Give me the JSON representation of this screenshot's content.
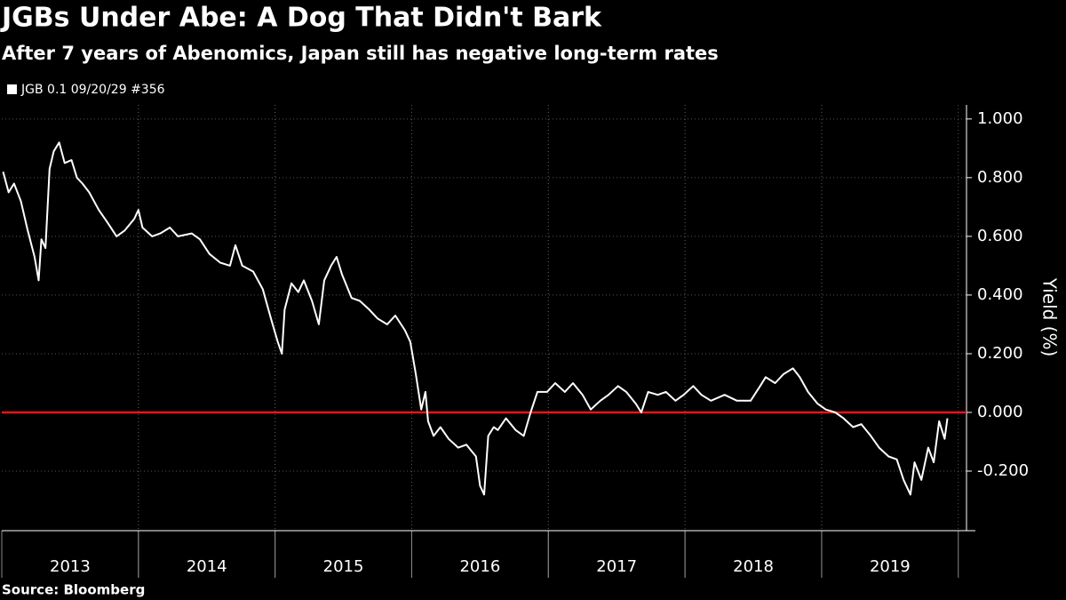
{
  "chart_data": {
    "type": "line",
    "title": "JGBs Under Abe: A Dog That Didn't Bark",
    "subtitle": "After 7 years of Abenomics, Japan still has negative long-term rates",
    "source": "Source: Bloomberg",
    "y_label": "Yield (%)",
    "x": [
      2013.01,
      2013.05,
      2013.09,
      2013.14,
      2013.19,
      2013.24,
      2013.27,
      2013.29,
      2013.32,
      2013.35,
      2013.38,
      2013.42,
      2013.46,
      2013.51,
      2013.55,
      2013.59,
      2013.64,
      2013.71,
      2013.77,
      2013.84,
      2013.9,
      2013.97,
      2014.0,
      2014.03,
      2014.1,
      2014.16,
      2014.23,
      2014.29,
      2014.39,
      2014.45,
      2014.52,
      2014.6,
      2014.67,
      2014.71,
      2014.76,
      2014.84,
      2014.91,
      2014.97,
      2015.02,
      2015.05,
      2015.07,
      2015.12,
      2015.17,
      2015.21,
      2015.27,
      2015.32,
      2015.36,
      2015.41,
      2015.45,
      2015.49,
      2015.56,
      2015.62,
      2015.69,
      2015.75,
      2015.82,
      2015.88,
      2015.95,
      2015.99,
      2016.03,
      2016.07,
      2016.1,
      2016.12,
      2016.16,
      2016.21,
      2016.27,
      2016.34,
      2016.4,
      2016.47,
      2016.5,
      2016.53,
      2016.56,
      2016.6,
      2016.63,
      2016.69,
      2016.76,
      2016.82,
      2016.87,
      2016.92,
      2016.99,
      2017.05,
      2017.12,
      2017.18,
      2017.25,
      2017.31,
      2017.38,
      2017.44,
      2017.51,
      2017.57,
      2017.64,
      2017.68,
      2017.73,
      2017.8,
      2017.86,
      2017.93,
      2017.99,
      2018.06,
      2018.12,
      2018.19,
      2018.29,
      2018.38,
      2018.48,
      2018.55,
      2018.59,
      2018.66,
      2018.72,
      2018.79,
      2018.84,
      2018.9,
      2018.97,
      2019.03,
      2019.1,
      2019.16,
      2019.23,
      2019.29,
      2019.36,
      2019.42,
      2019.49,
      2019.55,
      2019.6,
      2019.65,
      2019.68,
      2019.73,
      2019.78,
      2019.82,
      2019.86,
      2019.9,
      2019.92
    ],
    "series": [
      {
        "name": "JGB 0.1 09/20/29 #356",
        "color": "#ffffff",
        "values": [
          0.82,
          0.75,
          0.78,
          0.72,
          0.62,
          0.53,
          0.45,
          0.59,
          0.56,
          0.83,
          0.89,
          0.92,
          0.85,
          0.86,
          0.8,
          0.78,
          0.75,
          0.69,
          0.65,
          0.6,
          0.62,
          0.66,
          0.69,
          0.63,
          0.6,
          0.61,
          0.63,
          0.6,
          0.61,
          0.59,
          0.54,
          0.51,
          0.5,
          0.57,
          0.5,
          0.48,
          0.42,
          0.32,
          0.24,
          0.2,
          0.35,
          0.44,
          0.41,
          0.45,
          0.38,
          0.3,
          0.45,
          0.5,
          0.53,
          0.47,
          0.39,
          0.38,
          0.35,
          0.32,
          0.3,
          0.33,
          0.28,
          0.24,
          0.13,
          0.01,
          0.07,
          -0.03,
          -0.08,
          -0.05,
          -0.09,
          -0.12,
          -0.11,
          -0.15,
          -0.25,
          -0.28,
          -0.08,
          -0.05,
          -0.06,
          -0.02,
          -0.06,
          -0.08,
          0.0,
          0.07,
          0.07,
          0.1,
          0.07,
          0.1,
          0.06,
          0.01,
          0.04,
          0.06,
          0.09,
          0.07,
          0.03,
          0.0,
          0.07,
          0.06,
          0.07,
          0.04,
          0.06,
          0.09,
          0.06,
          0.04,
          0.06,
          0.04,
          0.04,
          0.09,
          0.12,
          0.1,
          0.13,
          0.15,
          0.12,
          0.07,
          0.03,
          0.01,
          0.0,
          -0.02,
          -0.05,
          -0.04,
          -0.08,
          -0.12,
          -0.15,
          -0.16,
          -0.23,
          -0.28,
          -0.17,
          -0.23,
          -0.12,
          -0.17,
          -0.03,
          -0.09,
          -0.02
        ]
      }
    ],
    "xlim": [
      2013.0,
      2020.06
    ],
    "xticks": [
      {
        "value": 2013.5,
        "label": "2013"
      },
      {
        "value": 2014.5,
        "label": "2014"
      },
      {
        "value": 2015.5,
        "label": "2015"
      },
      {
        "value": 2016.5,
        "label": "2016"
      },
      {
        "value": 2017.5,
        "label": "2017"
      },
      {
        "value": 2018.5,
        "label": "2018"
      },
      {
        "value": 2019.5,
        "label": "2019"
      }
    ],
    "ylim": [
      -0.403,
      1.048
    ],
    "yticks": [
      {
        "value": -0.2,
        "label": "-0.200"
      },
      {
        "value": 0,
        "label": "0.000"
      },
      {
        "value": 0.2,
        "label": "0.200"
      },
      {
        "value": 0.4,
        "label": "0.400"
      },
      {
        "value": 0.6,
        "label": "0.600"
      },
      {
        "value": 0.8,
        "label": "0.800"
      },
      {
        "value": 1.0,
        "label": "1.000"
      }
    ],
    "grid": true,
    "reference_line": {
      "value": 0,
      "color": "#e8141b"
    },
    "legend": "top-left"
  }
}
